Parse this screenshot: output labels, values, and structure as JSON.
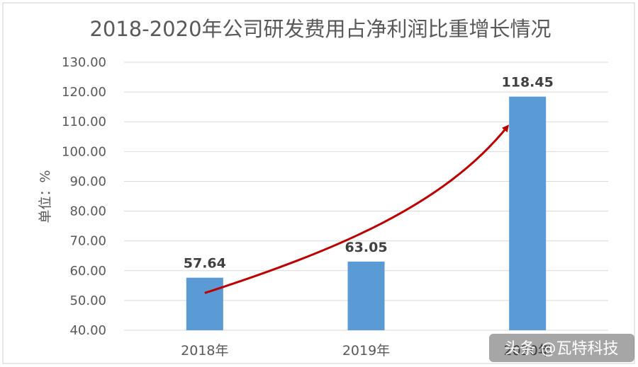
{
  "chart_data": {
    "type": "bar",
    "title": "2018-2020年公司研发费用占净利润比重增长情况",
    "ylabel": "单位：%",
    "xlabel": "",
    "categories": [
      "2018年",
      "2019年",
      "2020年"
    ],
    "values": [
      57.64,
      63.05,
      118.45
    ],
    "data_labels": [
      "57.64",
      "63.05",
      "118.45"
    ],
    "ylim": [
      40,
      130
    ],
    "yticks": [
      "40.00",
      "50.00",
      "60.00",
      "70.00",
      "80.00",
      "90.00",
      "100.00",
      "110.00",
      "120.00",
      "130.00"
    ],
    "grid": true,
    "bar_color": "#5b9bd5",
    "trend_arrow_color": "#c00000"
  },
  "watermark": {
    "text": "头条 @瓦特科技"
  }
}
